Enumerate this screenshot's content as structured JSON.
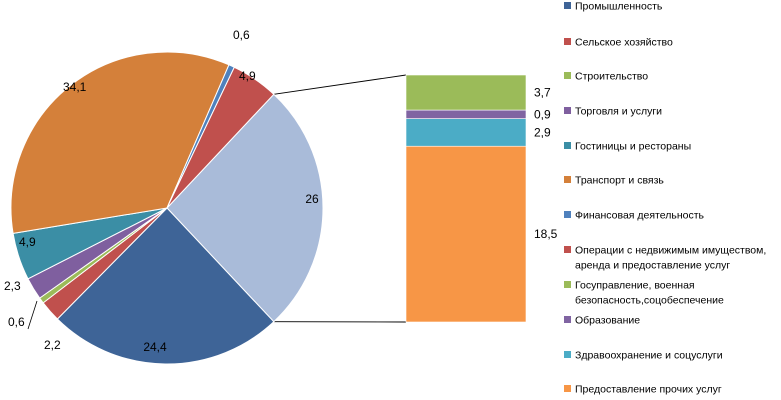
{
  "chart_data": {
    "type": "pie",
    "subtype": "pie-of-pie",
    "title": "",
    "legend_position": "right",
    "series": [
      {
        "name": "Промышленность",
        "value": 24.4,
        "label": "24,4",
        "color": "#3e6497"
      },
      {
        "name": "Сельское хозяйство",
        "value": 2.2,
        "label": "2,2",
        "color": "#c0504d"
      },
      {
        "name": "Строительство",
        "value": 0.6,
        "label": "0,6",
        "color": "#9bbb59"
      },
      {
        "name": "Торговля и услуги",
        "value": 2.3,
        "label": "2,3",
        "color": "#7f5f9f"
      },
      {
        "name": "Гостиницы и рестораны",
        "value": 4.9,
        "label": "4,9",
        "color": "#3b8ea5"
      },
      {
        "name": "Транспорт и связь",
        "value": 34.1,
        "label": "34,1",
        "color": "#d4803a"
      },
      {
        "name": "Финансовая деятельность",
        "value": 0.6,
        "label": "0,6",
        "color": "#4f81bd"
      },
      {
        "name": "Операции с недвижимым имуществом, аренда и предоставление услуг",
        "value": 4.9,
        "label": "4,9",
        "color": "#c0504d"
      },
      {
        "name": "Госуправление, военная безопасность,соцобеспечение",
        "value": 3.7,
        "label": "3,7",
        "color": "#9bbb59"
      },
      {
        "name": "Образование",
        "value": 0.9,
        "label": "0,9",
        "color": "#8064a2"
      },
      {
        "name": "Здравоохранение и соцуслуги",
        "value": 2.9,
        "label": "2,9",
        "color": "#4bacc6"
      },
      {
        "name": "Предоставление прочих услуг",
        "value": 18.5,
        "label": "18,5",
        "color": "#f79646"
      }
    ],
    "other_group": {
      "label": "26",
      "color": "#a9bbd9",
      "members": [
        8,
        9,
        10,
        11
      ]
    },
    "legend": [
      {
        "text": [
          "Промышленность"
        ],
        "color": "#3e6497"
      },
      {
        "text": [
          "Сельское хозяйство"
        ],
        "color": "#c0504d"
      },
      {
        "text": [
          "Строительство"
        ],
        "color": "#9bbb59"
      },
      {
        "text": [
          "Торговля и услуги"
        ],
        "color": "#7f5f9f"
      },
      {
        "text": [
          "Гостиницы и рестораны"
        ],
        "color": "#3b8ea5"
      },
      {
        "text": [
          "Транспорт и связь"
        ],
        "color": "#d4803a"
      },
      {
        "text": [
          "Финансовая деятельность"
        ],
        "color": "#4f81bd"
      },
      {
        "text": [
          "Операции с недвижимым имуществом,",
          "аренда и предоставление услуг"
        ],
        "color": "#c0504d"
      },
      {
        "text": [
          "Госуправление, военная",
          "безопасность,соцобеспечение"
        ],
        "color": "#9bbb59"
      },
      {
        "text": [
          "Образование"
        ],
        "color": "#8064a2"
      },
      {
        "text": [
          "Здравоохранение и соцуслуги"
        ],
        "color": "#4bacc6"
      },
      {
        "text": [
          "Предоставление прочих услуг"
        ],
        "color": "#f79646"
      }
    ]
  }
}
